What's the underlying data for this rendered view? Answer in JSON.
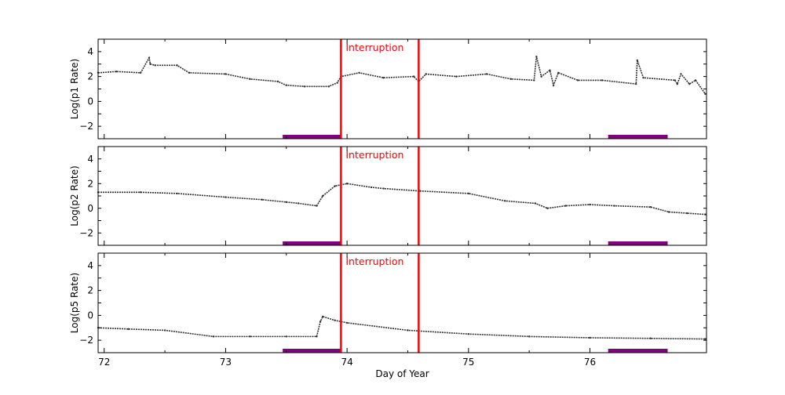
{
  "chart_data": [
    {
      "type": "scatter",
      "ylabel": "Log(p1 Rate)",
      "xlim": [
        71.95,
        76.96
      ],
      "ylim": [
        -3,
        5
      ],
      "yticks": [
        -2,
        0,
        2,
        4
      ],
      "annotation": "Interruption",
      "interruption_lines": [
        73.95,
        74.59
      ],
      "shaded_intervals": [
        [
          73.47,
          73.95
        ],
        [
          76.15,
          76.64
        ]
      ],
      "x": [
        71.95,
        72.1,
        72.3,
        72.37,
        72.38,
        72.42,
        72.6,
        72.7,
        73.0,
        73.2,
        73.43,
        73.5,
        73.65,
        73.85,
        73.92,
        73.95,
        74.1,
        74.3,
        74.55,
        74.59,
        74.65,
        74.9,
        75.15,
        75.35,
        75.54,
        75.56,
        75.6,
        75.67,
        75.7,
        75.74,
        75.9,
        76.1,
        76.38,
        76.39,
        76.44,
        76.7,
        76.72,
        76.75,
        76.82,
        76.87,
        76.95
      ],
      "y": [
        2.3,
        2.4,
        2.3,
        3.5,
        3.0,
        2.9,
        2.9,
        2.3,
        2.2,
        1.8,
        1.6,
        1.3,
        1.2,
        1.2,
        1.5,
        2.0,
        2.3,
        1.9,
        2.0,
        1.6,
        2.2,
        2.0,
        2.2,
        1.8,
        1.7,
        3.6,
        2.0,
        2.5,
        1.3,
        2.3,
        1.7,
        1.7,
        1.4,
        3.3,
        1.9,
        1.7,
        1.4,
        2.2,
        1.4,
        1.7,
        0.6
      ]
    },
    {
      "type": "scatter",
      "ylabel": "Log(p2 Rate)",
      "xlim": [
        71.95,
        76.96
      ],
      "ylim": [
        -3,
        5
      ],
      "yticks": [
        -2,
        0,
        2,
        4
      ],
      "annotation": "Interruption",
      "interruption_lines": [
        73.95,
        74.59
      ],
      "shaded_intervals": [
        [
          73.47,
          73.95
        ],
        [
          76.15,
          76.64
        ]
      ],
      "x": [
        71.95,
        72.3,
        72.6,
        73.0,
        73.3,
        73.5,
        73.6,
        73.75,
        73.8,
        73.9,
        74.0,
        74.2,
        74.3,
        74.6,
        75.0,
        75.3,
        75.55,
        75.65,
        75.8,
        76.0,
        76.2,
        76.5,
        76.65,
        76.8,
        76.95
      ],
      "y": [
        1.3,
        1.3,
        1.2,
        0.9,
        0.7,
        0.5,
        0.4,
        0.2,
        1.0,
        1.8,
        2.0,
        1.7,
        1.6,
        1.4,
        1.2,
        0.6,
        0.4,
        0.0,
        0.2,
        0.3,
        0.2,
        0.1,
        -0.3,
        -0.4,
        -0.5
      ]
    },
    {
      "type": "scatter",
      "ylabel": "Log(p5 Rate)",
      "xlabel": "Day of Year",
      "xlim": [
        71.95,
        76.96
      ],
      "ylim": [
        -3,
        5
      ],
      "yticks": [
        -2,
        0,
        2,
        4
      ],
      "xticks": [
        72,
        73,
        74,
        75,
        76
      ],
      "annotation": "Interruption",
      "interruption_lines": [
        73.95,
        74.59
      ],
      "shaded_intervals": [
        [
          73.47,
          73.95
        ],
        [
          76.15,
          76.64
        ]
      ],
      "x": [
        71.95,
        72.2,
        72.5,
        72.9,
        73.2,
        73.5,
        73.75,
        73.78,
        73.8,
        73.9,
        74.0,
        74.5,
        75.0,
        75.5,
        76.0,
        76.5,
        76.95
      ],
      "y": [
        -1.0,
        -1.1,
        -1.2,
        -1.7,
        -1.7,
        -1.7,
        -1.7,
        -0.5,
        -0.1,
        -0.4,
        -0.6,
        -1.2,
        -1.5,
        -1.7,
        -1.8,
        -1.85,
        -1.9
      ]
    }
  ],
  "colors": {
    "data": "#333333",
    "interruption": "#ff0000",
    "shade": "#800080"
  }
}
